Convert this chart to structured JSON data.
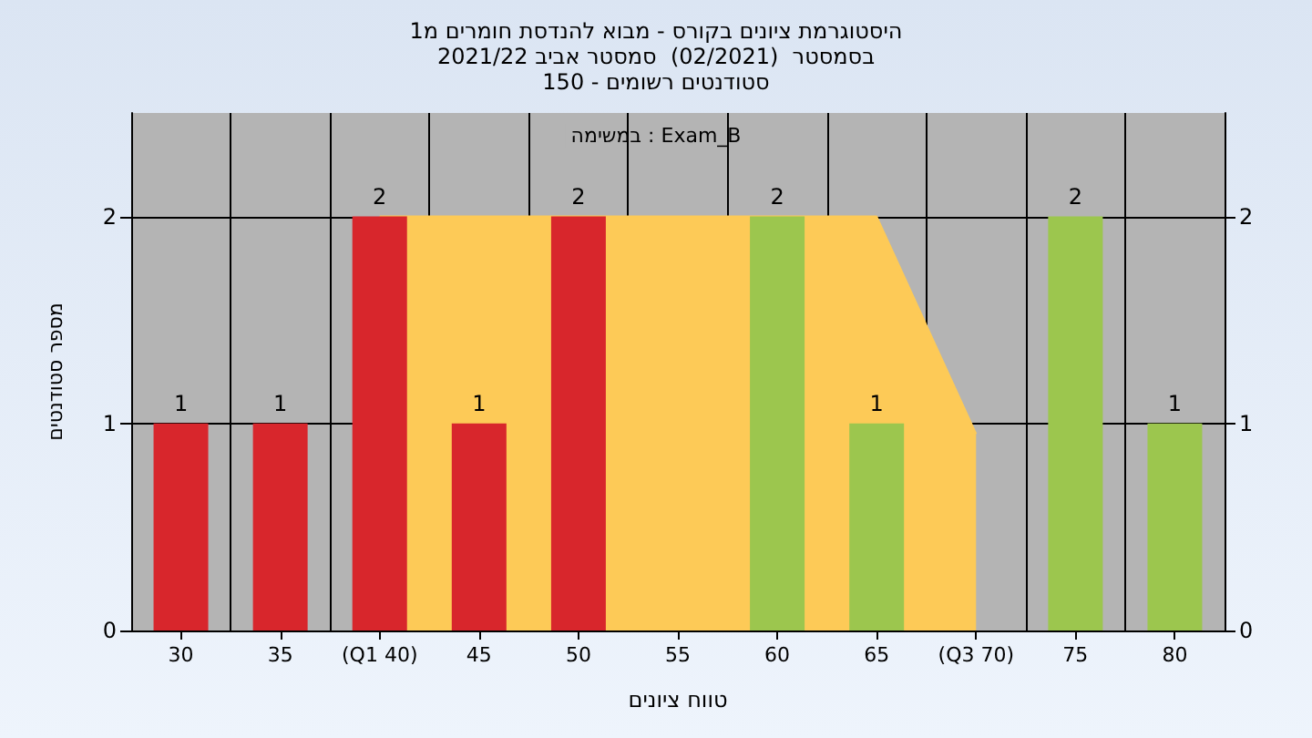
{
  "chart_data": {
    "type": "bar",
    "title": "היסטוגרמת ציונים בקורס - מבוא להנדסת חומרים מ1",
    "subtitle": "בסמסטר  (02/2021)  סמסטר אביב 2021/22\nסטודנטים רשומים - 150",
    "xlabel": "טווח ציונים",
    "ylabel": "מספר סטודנטים",
    "annotations": [
      "במשימה : Exam_B"
    ],
    "categories": [
      "30",
      "35",
      "(Q1 40)",
      "45",
      "50",
      "55",
      "60",
      "65",
      "(Q3 70)",
      "75",
      "80"
    ],
    "series": [
      {
        "type": "area",
        "color": "#fdca57",
        "values": [
          null,
          null,
          2,
          2,
          2,
          2,
          2,
          2,
          0.95,
          null,
          null
        ]
      },
      {
        "values": [
          1,
          1,
          2,
          1,
          2,
          null,
          2,
          1,
          null,
          2,
          1
        ],
        "colors": [
          "#d8262c",
          "#d8262c",
          "#d8262c",
          "#d8262c",
          "#d8262c",
          null,
          "#9cc64e",
          "#9cc64e",
          null,
          "#9cc64e",
          "#9cc64e"
        ],
        "data_labels": true
      }
    ],
    "ylim": [
      0,
      2.5
    ],
    "yticks": [
      0,
      1,
      2
    ],
    "y2lim": [
      0,
      2.5
    ],
    "y2ticks": [
      0,
      1,
      2
    ],
    "grid": true
  }
}
